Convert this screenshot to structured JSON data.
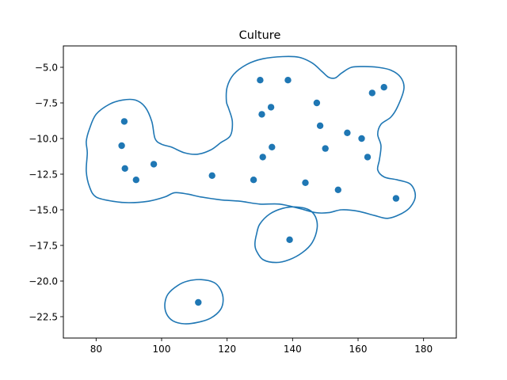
{
  "chart_data": {
    "type": "scatter",
    "title": "Culture",
    "xlabel": "",
    "ylabel": "",
    "xlim": [
      70,
      190
    ],
    "ylim": [
      -24,
      -3.5
    ],
    "xticks": [
      80,
      100,
      120,
      140,
      160,
      180
    ],
    "yticks": [
      -5.0,
      -7.5,
      -10.0,
      -12.5,
      -15.0,
      -17.5,
      -20.0,
      -22.5
    ],
    "xtick_labels": [
      "80",
      "100",
      "120",
      "140",
      "160",
      "180"
    ],
    "ytick_labels": [
      "−5.0",
      "−7.5",
      "−10.0",
      "−12.5",
      "−15.0",
      "−17.5",
      "−20.0",
      "−22.5"
    ],
    "grid": false,
    "color": "#1f77b4",
    "points": [
      {
        "x": 88.6,
        "y": -8.8
      },
      {
        "x": 87.8,
        "y": -10.5
      },
      {
        "x": 88.8,
        "y": -12.1
      },
      {
        "x": 92.2,
        "y": -12.9
      },
      {
        "x": 97.6,
        "y": -11.8
      },
      {
        "x": 115.4,
        "y": -12.6
      },
      {
        "x": 130.1,
        "y": -5.9
      },
      {
        "x": 138.6,
        "y": -5.9
      },
      {
        "x": 133.4,
        "y": -7.8
      },
      {
        "x": 130.6,
        "y": -8.3
      },
      {
        "x": 133.7,
        "y": -10.6
      },
      {
        "x": 130.9,
        "y": -11.3
      },
      {
        "x": 128.1,
        "y": -12.9
      },
      {
        "x": 143.9,
        "y": -13.1
      },
      {
        "x": 147.4,
        "y": -7.5
      },
      {
        "x": 148.4,
        "y": -9.1
      },
      {
        "x": 150.0,
        "y": -10.7
      },
      {
        "x": 156.7,
        "y": -9.6
      },
      {
        "x": 153.9,
        "y": -13.6
      },
      {
        "x": 161.1,
        "y": -10.0
      },
      {
        "x": 162.9,
        "y": -11.3
      },
      {
        "x": 164.3,
        "y": -6.8
      },
      {
        "x": 167.9,
        "y": -6.4
      },
      {
        "x": 171.6,
        "y": -14.2
      },
      {
        "x": 139.1,
        "y": -17.1
      },
      {
        "x": 111.2,
        "y": -21.5
      }
    ],
    "contours": [
      [
        [
          78,
          -9.3
        ],
        [
          80,
          -8.3
        ],
        [
          84,
          -7.6
        ],
        [
          88,
          -7.3
        ],
        [
          92,
          -7.3
        ],
        [
          95,
          -7.8
        ],
        [
          97,
          -8.8
        ],
        [
          98,
          -10.0
        ],
        [
          100,
          -10.4
        ],
        [
          103,
          -10.6
        ],
        [
          107,
          -11.0
        ],
        [
          111,
          -11.1
        ],
        [
          115,
          -10.8
        ],
        [
          118,
          -10.3
        ],
        [
          121,
          -9.8
        ],
        [
          121.6,
          -8.8
        ],
        [
          120.5,
          -7.9
        ],
        [
          119.8,
          -7.4
        ],
        [
          120,
          -6.4
        ],
        [
          122,
          -5.5
        ],
        [
          126,
          -4.8
        ],
        [
          131,
          -4.4
        ],
        [
          137,
          -4.25
        ],
        [
          142,
          -4.3
        ],
        [
          146,
          -4.7
        ],
        [
          149,
          -5.3
        ],
        [
          151,
          -5.7
        ],
        [
          153,
          -5.75
        ],
        [
          155,
          -5.4
        ],
        [
          158,
          -5.0
        ],
        [
          162,
          -4.95
        ],
        [
          166,
          -5.0
        ],
        [
          170,
          -5.2
        ],
        [
          173,
          -5.7
        ],
        [
          174,
          -6.5
        ],
        [
          172,
          -7.8
        ],
        [
          170,
          -8.5
        ],
        [
          167,
          -9.0
        ],
        [
          166,
          -9.7
        ],
        [
          167,
          -10.5
        ],
        [
          166.5,
          -11.5
        ],
        [
          166,
          -12.2
        ],
        [
          168,
          -12.7
        ],
        [
          172,
          -12.9
        ],
        [
          176,
          -13.2
        ],
        [
          177.5,
          -14.0
        ],
        [
          176,
          -14.8
        ],
        [
          173,
          -15.3
        ],
        [
          169,
          -15.6
        ],
        [
          165,
          -15.4
        ],
        [
          160,
          -15.1
        ],
        [
          155,
          -15.0
        ],
        [
          151,
          -15.2
        ],
        [
          147,
          -15.2
        ],
        [
          142,
          -14.9
        ],
        [
          136,
          -14.6
        ],
        [
          130,
          -14.6
        ],
        [
          124,
          -14.4
        ],
        [
          118,
          -14.3
        ],
        [
          112,
          -14.1
        ],
        [
          108,
          -13.9
        ],
        [
          104,
          -13.8
        ],
        [
          101,
          -14.1
        ],
        [
          96,
          -14.4
        ],
        [
          90,
          -14.5
        ],
        [
          85,
          -14.4
        ],
        [
          80,
          -14.1
        ],
        [
          78,
          -13.4
        ],
        [
          77,
          -12.3
        ],
        [
          77.3,
          -11.0
        ],
        [
          77,
          -10.2
        ],
        [
          78,
          -9.3
        ]
      ],
      [
        [
          129,
          -16.7
        ],
        [
          130,
          -16.0
        ],
        [
          133,
          -15.3
        ],
        [
          137,
          -14.9
        ],
        [
          141,
          -14.8
        ],
        [
          145,
          -15.0
        ],
        [
          147,
          -15.5
        ],
        [
          147.5,
          -16.3
        ],
        [
          146,
          -17.3
        ],
        [
          143,
          -18.0
        ],
        [
          139,
          -18.5
        ],
        [
          135,
          -18.7
        ],
        [
          131,
          -18.5
        ],
        [
          129,
          -17.9
        ],
        [
          128.5,
          -17.4
        ],
        [
          129,
          -16.7
        ]
      ],
      [
        [
          101,
          -21.6
        ],
        [
          102,
          -20.9
        ],
        [
          105,
          -20.3
        ],
        [
          108,
          -20.0
        ],
        [
          112,
          -19.9
        ],
        [
          116,
          -20.1
        ],
        [
          118,
          -20.6
        ],
        [
          118.8,
          -21.3
        ],
        [
          118,
          -22.0
        ],
        [
          115,
          -22.6
        ],
        [
          111,
          -22.9
        ],
        [
          107,
          -23.0
        ],
        [
          103.5,
          -22.8
        ],
        [
          101.5,
          -22.3
        ],
        [
          101,
          -21.6
        ]
      ]
    ]
  }
}
